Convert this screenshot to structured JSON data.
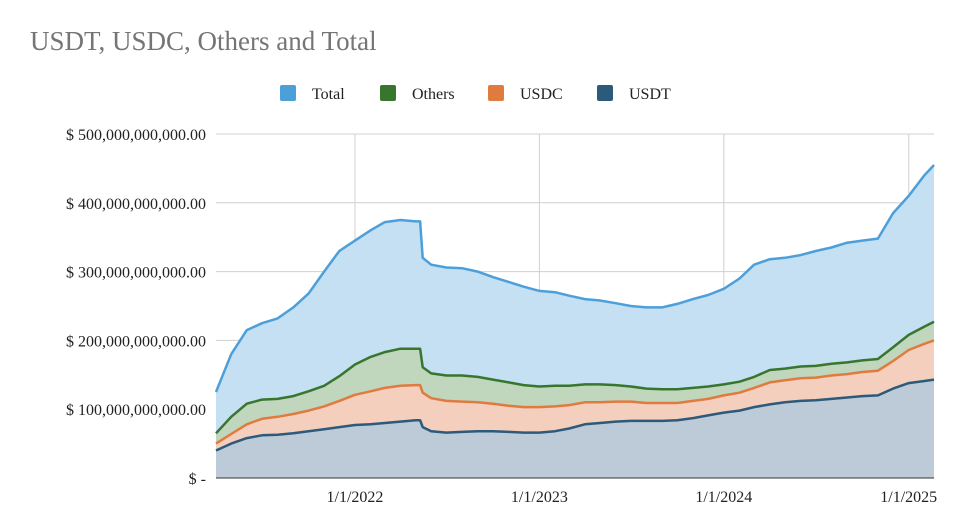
{
  "chart_data": {
    "type": "area",
    "stacked": true,
    "title": "USDT, USDC, Others and Total",
    "xlabel": "",
    "ylabel": "",
    "x_tick_labels": [
      "1/1/2022",
      "1/1/2023",
      "1/1/2024",
      "1/1/2025"
    ],
    "y_tick_labels": [
      "$ -",
      "$ 100,000,000,000.00",
      "$ 200,000,000,000.00",
      "$ 300,000,000,000.00",
      "$ 400,000,000,000.00",
      "$ 500,000,000,000.00"
    ],
    "ylim": [
      0,
      500000000000
    ],
    "xlim": [
      "2021-04-01",
      "2025-02-20"
    ],
    "grid": true,
    "legend_position": "top",
    "legend_order": [
      "Total",
      "Others",
      "USDC",
      "USDT"
    ],
    "x": [
      "2021-04-01",
      "2021-05-01",
      "2021-06-01",
      "2021-07-01",
      "2021-08-01",
      "2021-09-01",
      "2021-10-01",
      "2021-11-01",
      "2021-12-01",
      "2022-01-01",
      "2022-02-01",
      "2022-03-01",
      "2022-04-01",
      "2022-05-01",
      "2022-05-10",
      "2022-05-15",
      "2022-06-01",
      "2022-07-01",
      "2022-08-01",
      "2022-09-01",
      "2022-10-01",
      "2022-11-01",
      "2022-12-01",
      "2023-01-01",
      "2023-02-01",
      "2023-03-01",
      "2023-04-01",
      "2023-05-01",
      "2023-06-01",
      "2023-07-01",
      "2023-08-01",
      "2023-09-01",
      "2023-10-01",
      "2023-11-01",
      "2023-12-01",
      "2024-01-01",
      "2024-02-01",
      "2024-03-01",
      "2024-04-01",
      "2024-05-01",
      "2024-06-01",
      "2024-07-01",
      "2024-08-01",
      "2024-09-01",
      "2024-10-01",
      "2024-11-01",
      "2024-12-01",
      "2025-01-01",
      "2025-02-01",
      "2025-02-20"
    ],
    "series": [
      {
        "name": "USDT",
        "color": "#2c5a7a",
        "fill": "#bccbd7",
        "values": [
          40,
          50,
          58,
          62,
          63,
          65,
          68,
          71,
          74,
          77,
          78,
          80,
          82,
          84,
          84,
          74,
          68,
          66,
          67,
          68,
          68,
          67,
          66,
          66,
          68,
          72,
          78,
          80,
          82,
          83,
          83,
          83,
          84,
          87,
          91,
          95,
          98,
          103,
          107,
          110,
          112,
          113,
          115,
          117,
          119,
          120,
          130,
          138,
          141,
          143
        ]
      },
      {
        "name": "USDC",
        "color": "#e07b40",
        "fill": "#f4cfbd",
        "values": [
          10,
          14,
          20,
          24,
          26,
          28,
          30,
          33,
          38,
          44,
          48,
          51,
          52,
          51,
          51,
          50,
          48,
          46,
          44,
          42,
          40,
          38,
          37,
          37,
          36,
          34,
          32,
          30,
          29,
          28,
          26,
          26,
          25,
          25,
          24,
          25,
          26,
          28,
          32,
          32,
          33,
          33,
          34,
          34,
          35,
          36,
          40,
          48,
          54,
          57
        ]
      },
      {
        "name": "Others",
        "color": "#38762e",
        "fill": "#c0d6bd",
        "values": [
          15,
          25,
          30,
          28,
          26,
          26,
          28,
          30,
          36,
          44,
          50,
          52,
          54,
          53,
          53,
          37,
          36,
          37,
          38,
          37,
          35,
          34,
          32,
          30,
          30,
          28,
          26,
          26,
          24,
          22,
          21,
          20,
          20,
          19,
          18,
          16,
          16,
          16,
          18,
          17,
          17,
          17,
          17,
          17,
          17,
          17,
          20,
          22,
          25,
          27
        ]
      },
      {
        "name": "Total",
        "color": "#4d9fd9",
        "fill": "#c4e0f2",
        "values": [
          125,
          180,
          215,
          225,
          232,
          248,
          268,
          300,
          330,
          345,
          360,
          372,
          375,
          373,
          373,
          320,
          310,
          306,
          305,
          300,
          292,
          285,
          278,
          272,
          270,
          265,
          260,
          258,
          254,
          250,
          248,
          248,
          253,
          260,
          266,
          275,
          290,
          310,
          318,
          320,
          324,
          330,
          335,
          342,
          345,
          348,
          385,
          410,
          440,
          455
        ],
        "note_units": "values in billions of dollars"
      }
    ]
  }
}
